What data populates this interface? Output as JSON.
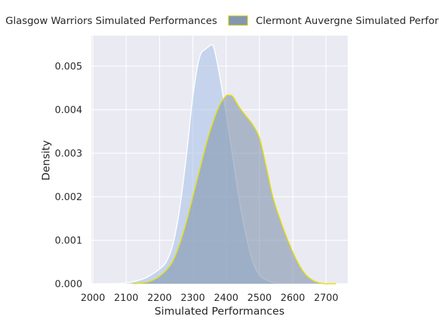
{
  "chart_data": {
    "type": "area",
    "title": "",
    "xlabel": "Simulated Performances",
    "ylabel": "Density",
    "xlim": [
      1995,
      2765
    ],
    "ylim": [
      0,
      0.0057
    ],
    "x_ticks": [
      "2000",
      "2100",
      "2200",
      "2300",
      "2400",
      "2500",
      "2600",
      "2700"
    ],
    "y_ticks": [
      "0.000",
      "0.001",
      "0.002",
      "0.003",
      "0.004",
      "0.005"
    ],
    "grid": true,
    "legend_position": "top, outside plot",
    "series": [
      {
        "name": "Glasgow Warriors Simulated Performances",
        "fill_color": "#aec7e8",
        "line_color": "#ffffff",
        "x": [
          2010,
          2050,
          2100,
          2150,
          2180,
          2200,
          2220,
          2240,
          2260,
          2280,
          2300,
          2320,
          2340,
          2350,
          2360,
          2370,
          2380,
          2400,
          2420,
          2440,
          2460,
          2480,
          2500,
          2520,
          2540,
          2560,
          2580,
          2600
        ],
        "values": [
          0.0,
          0.0,
          2e-05,
          0.00011,
          0.00023,
          0.00034,
          0.0005,
          0.0009,
          0.0017,
          0.0029,
          0.0043,
          0.0052,
          0.0054,
          0.00546,
          0.00548,
          0.0052,
          0.0048,
          0.0039,
          0.0029,
          0.0019,
          0.0011,
          0.0005,
          0.0002,
          9e-05,
          3e-05,
          1e-05,
          0.0,
          0.0
        ]
      },
      {
        "name": "Clermont Auvergne Simulated Performances",
        "fill_color": "#8497b0",
        "line_color": "#e8e000",
        "x": [
          2120,
          2150,
          2170,
          2190,
          2200,
          2220,
          2240,
          2260,
          2280,
          2300,
          2320,
          2340,
          2360,
          2380,
          2400,
          2410,
          2420,
          2440,
          2460,
          2480,
          2500,
          2520,
          2540,
          2560,
          2580,
          2600,
          2620,
          2640,
          2660,
          2680,
          2700,
          2730
        ],
        "values": [
          0.0,
          2e-05,
          5e-05,
          0.00012,
          0.00017,
          0.00031,
          0.00052,
          0.0009,
          0.0014,
          0.002,
          0.0026,
          0.0032,
          0.0037,
          0.0041,
          0.00432,
          0.00433,
          0.0043,
          0.00405,
          0.00385,
          0.00365,
          0.00335,
          0.0027,
          0.002,
          0.00152,
          0.0011,
          0.00073,
          0.00042,
          0.0002,
          8e-05,
          2e-05,
          0.0,
          0.0
        ]
      }
    ]
  }
}
